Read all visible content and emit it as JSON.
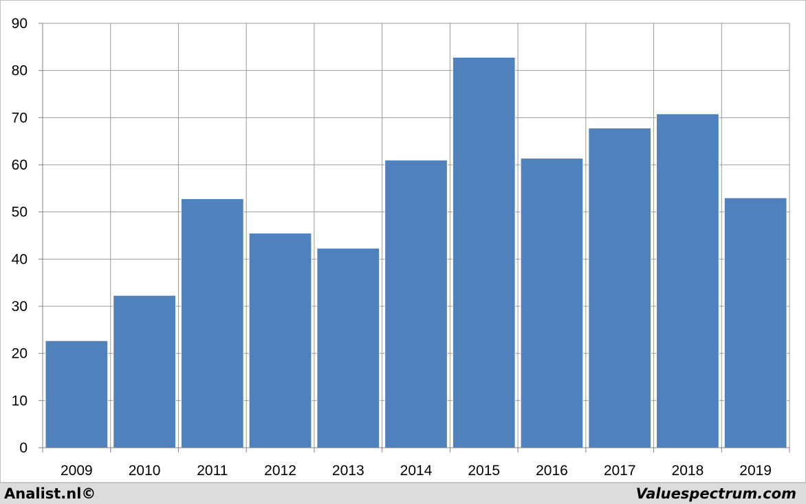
{
  "chart_data": {
    "type": "bar",
    "categories": [
      "2009",
      "2010",
      "2011",
      "2012",
      "2013",
      "2014",
      "2015",
      "2016",
      "2017",
      "2018",
      "2019"
    ],
    "values": [
      22.7,
      32.3,
      52.8,
      45.5,
      42.3,
      61.0,
      82.8,
      61.4,
      67.8,
      70.8,
      53.0
    ],
    "ylim": [
      0,
      90
    ],
    "yticks": [
      "0",
      "10",
      "20",
      "30",
      "40",
      "50",
      "60",
      "70",
      "80",
      "90"
    ],
    "grid": true,
    "bar_color": "#4f81bd",
    "grid_color": "#999999"
  },
  "footer": {
    "left": "Analist.nl©",
    "right": "Valuespectrum.com"
  }
}
